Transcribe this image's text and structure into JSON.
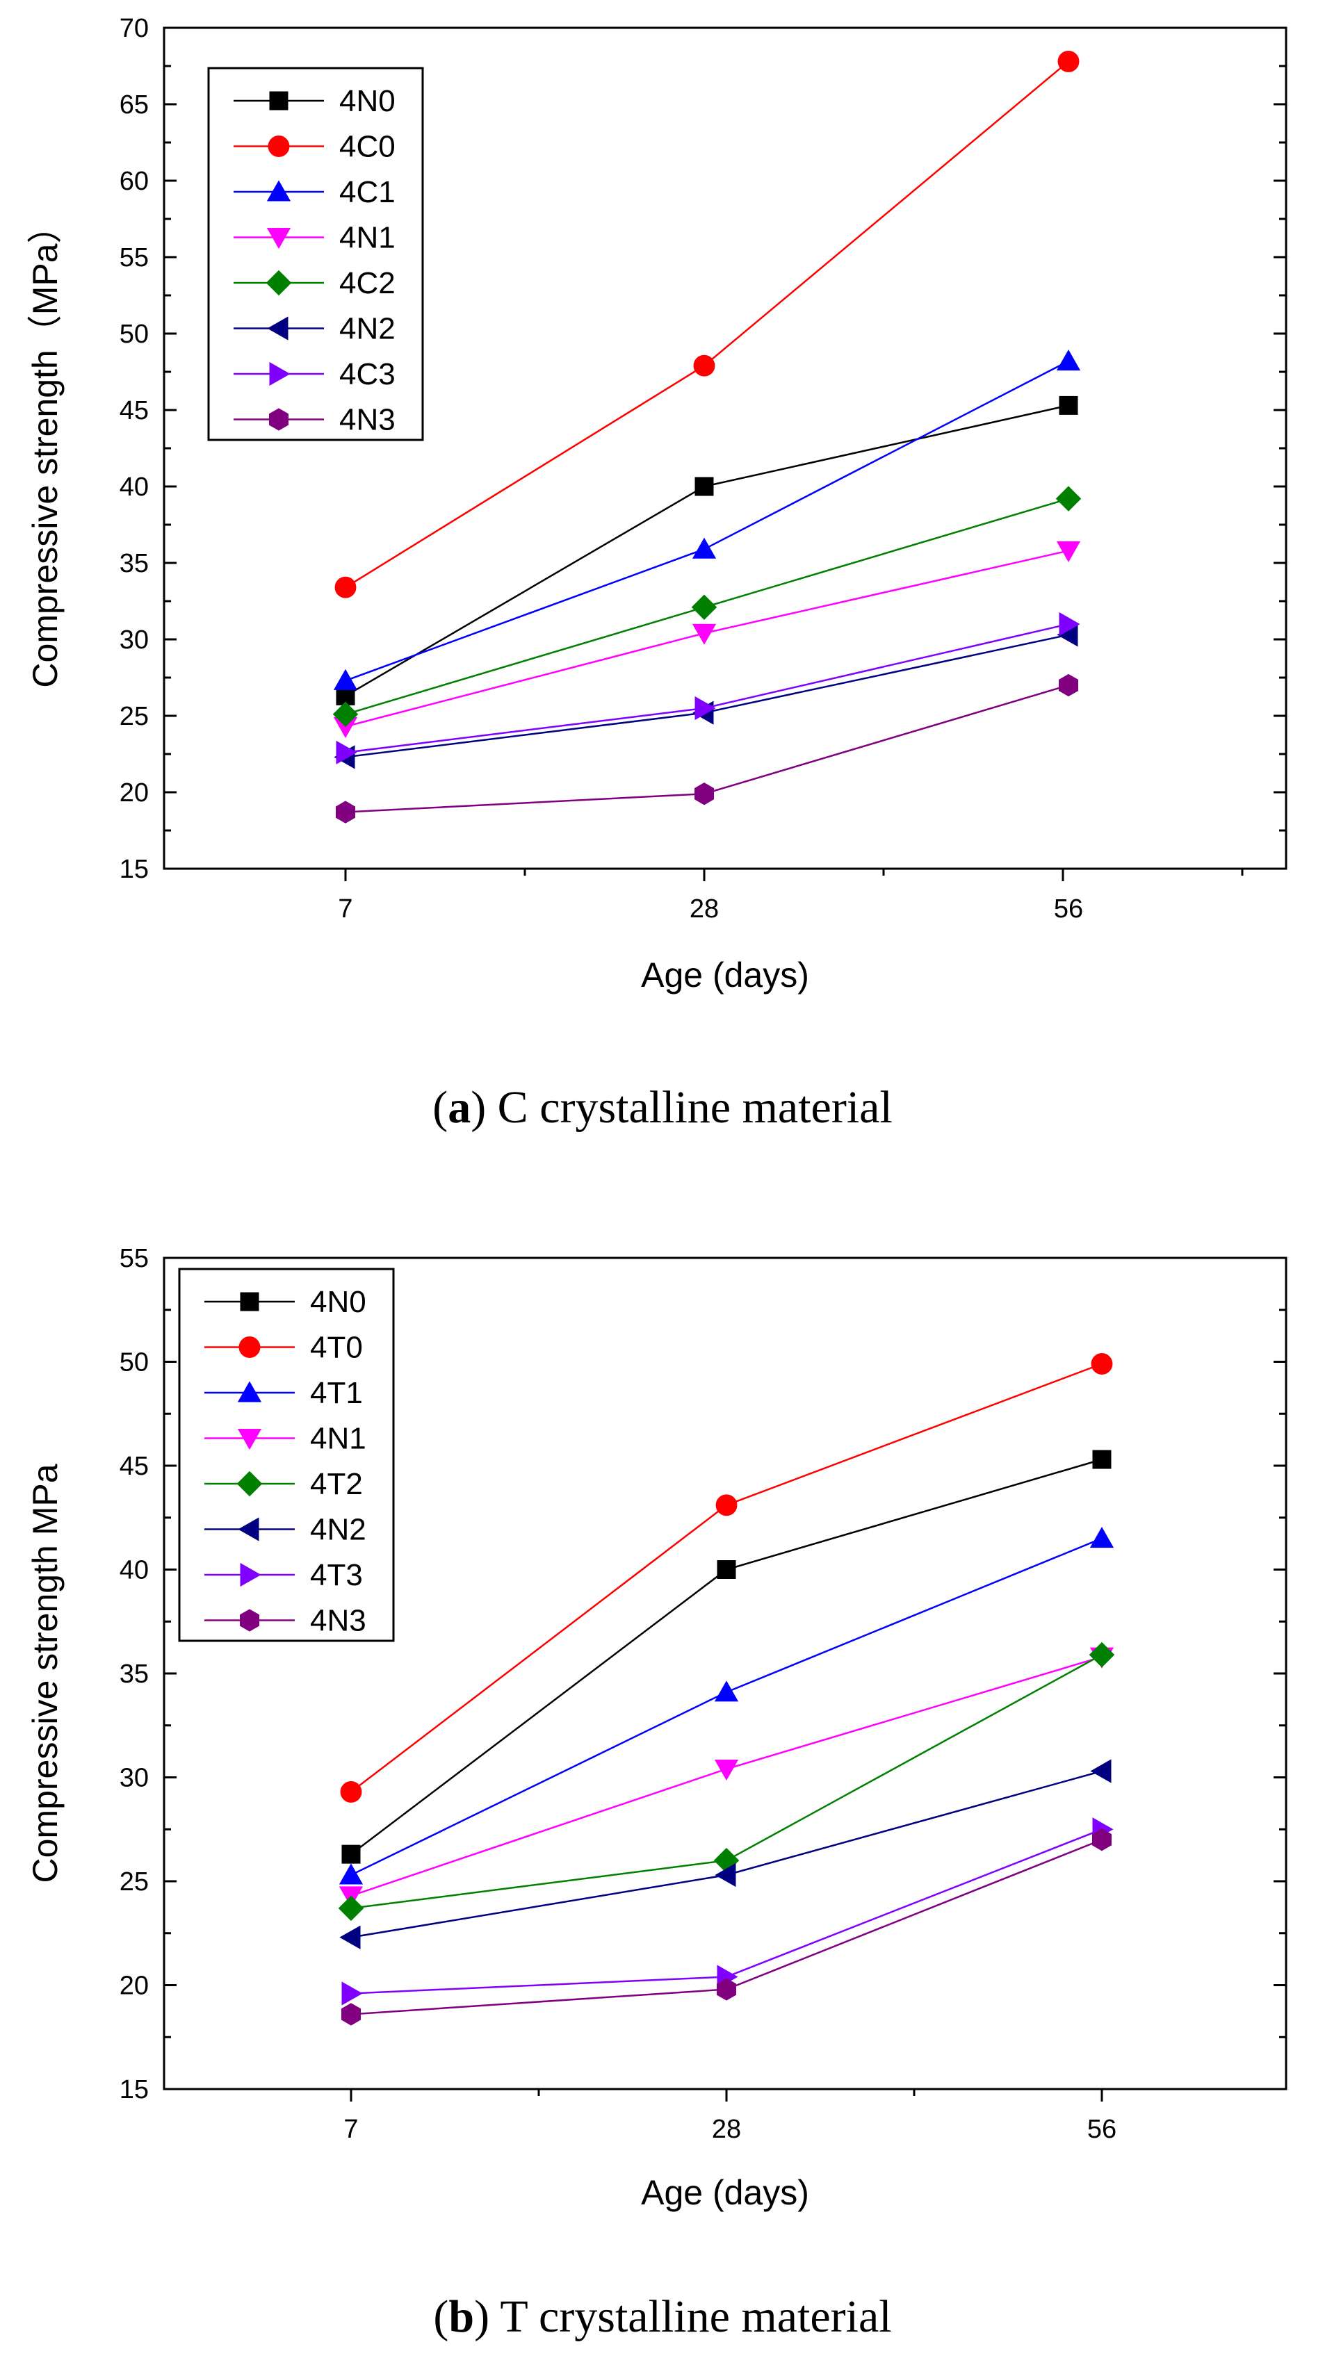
{
  "chart_data": [
    {
      "type": "line",
      "caption": {
        "prefix": "(",
        "letter": "a",
        "suffix": ") C crystalline material"
      },
      "xlabel": "Age (days)",
      "ylabel": "Compressive strength（MPa）",
      "categories": [
        "7",
        "28",
        "56"
      ],
      "ylim": [
        15,
        70
      ],
      "yticks": [
        15,
        20,
        25,
        30,
        35,
        40,
        45,
        50,
        55,
        60,
        65,
        70
      ],
      "legend_position": "top-left",
      "series": [
        {
          "name": "4N0",
          "color": "#000000",
          "marker": "square",
          "values": [
            26.3,
            40.0,
            45.3
          ]
        },
        {
          "name": "4C0",
          "color": "#ff0000",
          "marker": "circle",
          "values": [
            33.4,
            47.9,
            67.8
          ]
        },
        {
          "name": "4C1",
          "color": "#0000ff",
          "marker": "triangle-up",
          "values": [
            27.3,
            35.9,
            48.2
          ]
        },
        {
          "name": "4N1",
          "color": "#ff00ff",
          "marker": "triangle-down",
          "values": [
            24.3,
            30.4,
            35.8
          ]
        },
        {
          "name": "4C2",
          "color": "#008000",
          "marker": "diamond",
          "values": [
            25.1,
            32.1,
            39.2
          ]
        },
        {
          "name": "4N2",
          "color": "#000080",
          "marker": "triangle-left",
          "values": [
            22.3,
            25.2,
            30.3
          ]
        },
        {
          "name": "4C3",
          "color": "#8000ff",
          "marker": "triangle-right",
          "values": [
            22.6,
            25.5,
            31.0
          ]
        },
        {
          "name": "4N3",
          "color": "#800080",
          "marker": "hexagon",
          "values": [
            18.7,
            19.9,
            27.0
          ]
        }
      ]
    },
    {
      "type": "line",
      "caption": {
        "prefix": "(",
        "letter": "b",
        "suffix": ") T crystalline material"
      },
      "xlabel": "Age (days)",
      "ylabel": "Compressive strength   MPa",
      "categories": [
        "7",
        "28",
        "56"
      ],
      "ylim": [
        15,
        55
      ],
      "yticks": [
        15,
        20,
        25,
        30,
        35,
        40,
        45,
        50,
        55
      ],
      "legend_position": "top-left",
      "series": [
        {
          "name": "4N0",
          "color": "#000000",
          "marker": "square",
          "values": [
            26.3,
            40.0,
            45.3
          ]
        },
        {
          "name": "4T0",
          "color": "#ff0000",
          "marker": "circle",
          "values": [
            29.3,
            43.1,
            49.9
          ]
        },
        {
          "name": "4T1",
          "color": "#0000ff",
          "marker": "triangle-up",
          "values": [
            25.3,
            34.1,
            41.5
          ]
        },
        {
          "name": "4N1",
          "color": "#ff00ff",
          "marker": "triangle-down",
          "values": [
            24.3,
            30.4,
            35.8
          ]
        },
        {
          "name": "4T2",
          "color": "#008000",
          "marker": "diamond",
          "values": [
            23.7,
            26.0,
            35.9
          ]
        },
        {
          "name": "4N2",
          "color": "#000080",
          "marker": "triangle-left",
          "values": [
            22.3,
            25.3,
            30.3
          ]
        },
        {
          "name": "4T3",
          "color": "#8000ff",
          "marker": "triangle-right",
          "values": [
            19.6,
            20.4,
            27.5
          ]
        },
        {
          "name": "4N3",
          "color": "#800080",
          "marker": "hexagon",
          "values": [
            18.6,
            19.8,
            27.0
          ]
        }
      ]
    }
  ]
}
